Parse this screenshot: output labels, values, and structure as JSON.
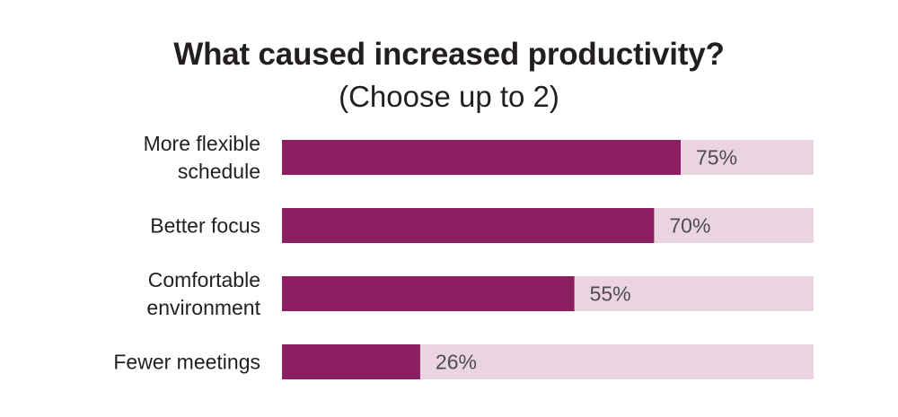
{
  "chart_data": {
    "type": "bar",
    "orientation": "horizontal",
    "title": "What caused increased productivity?",
    "subtitle": "(Choose up to 2)",
    "categories": [
      [
        "More flexible",
        "schedule"
      ],
      [
        "Better focus"
      ],
      [
        "Comfortable",
        "environment"
      ],
      [
        "Fewer meetings"
      ]
    ],
    "values": [
      75,
      70,
      55,
      26
    ],
    "value_labels": [
      "75%",
      "70%",
      "55%",
      "26%"
    ],
    "xlim": [
      0,
      100
    ],
    "grid": false,
    "legend": "none",
    "colors": {
      "bar": "#8c1e62",
      "track": "#ead4e1",
      "text": "#231f20",
      "value_text": "#4d4d4d"
    }
  }
}
